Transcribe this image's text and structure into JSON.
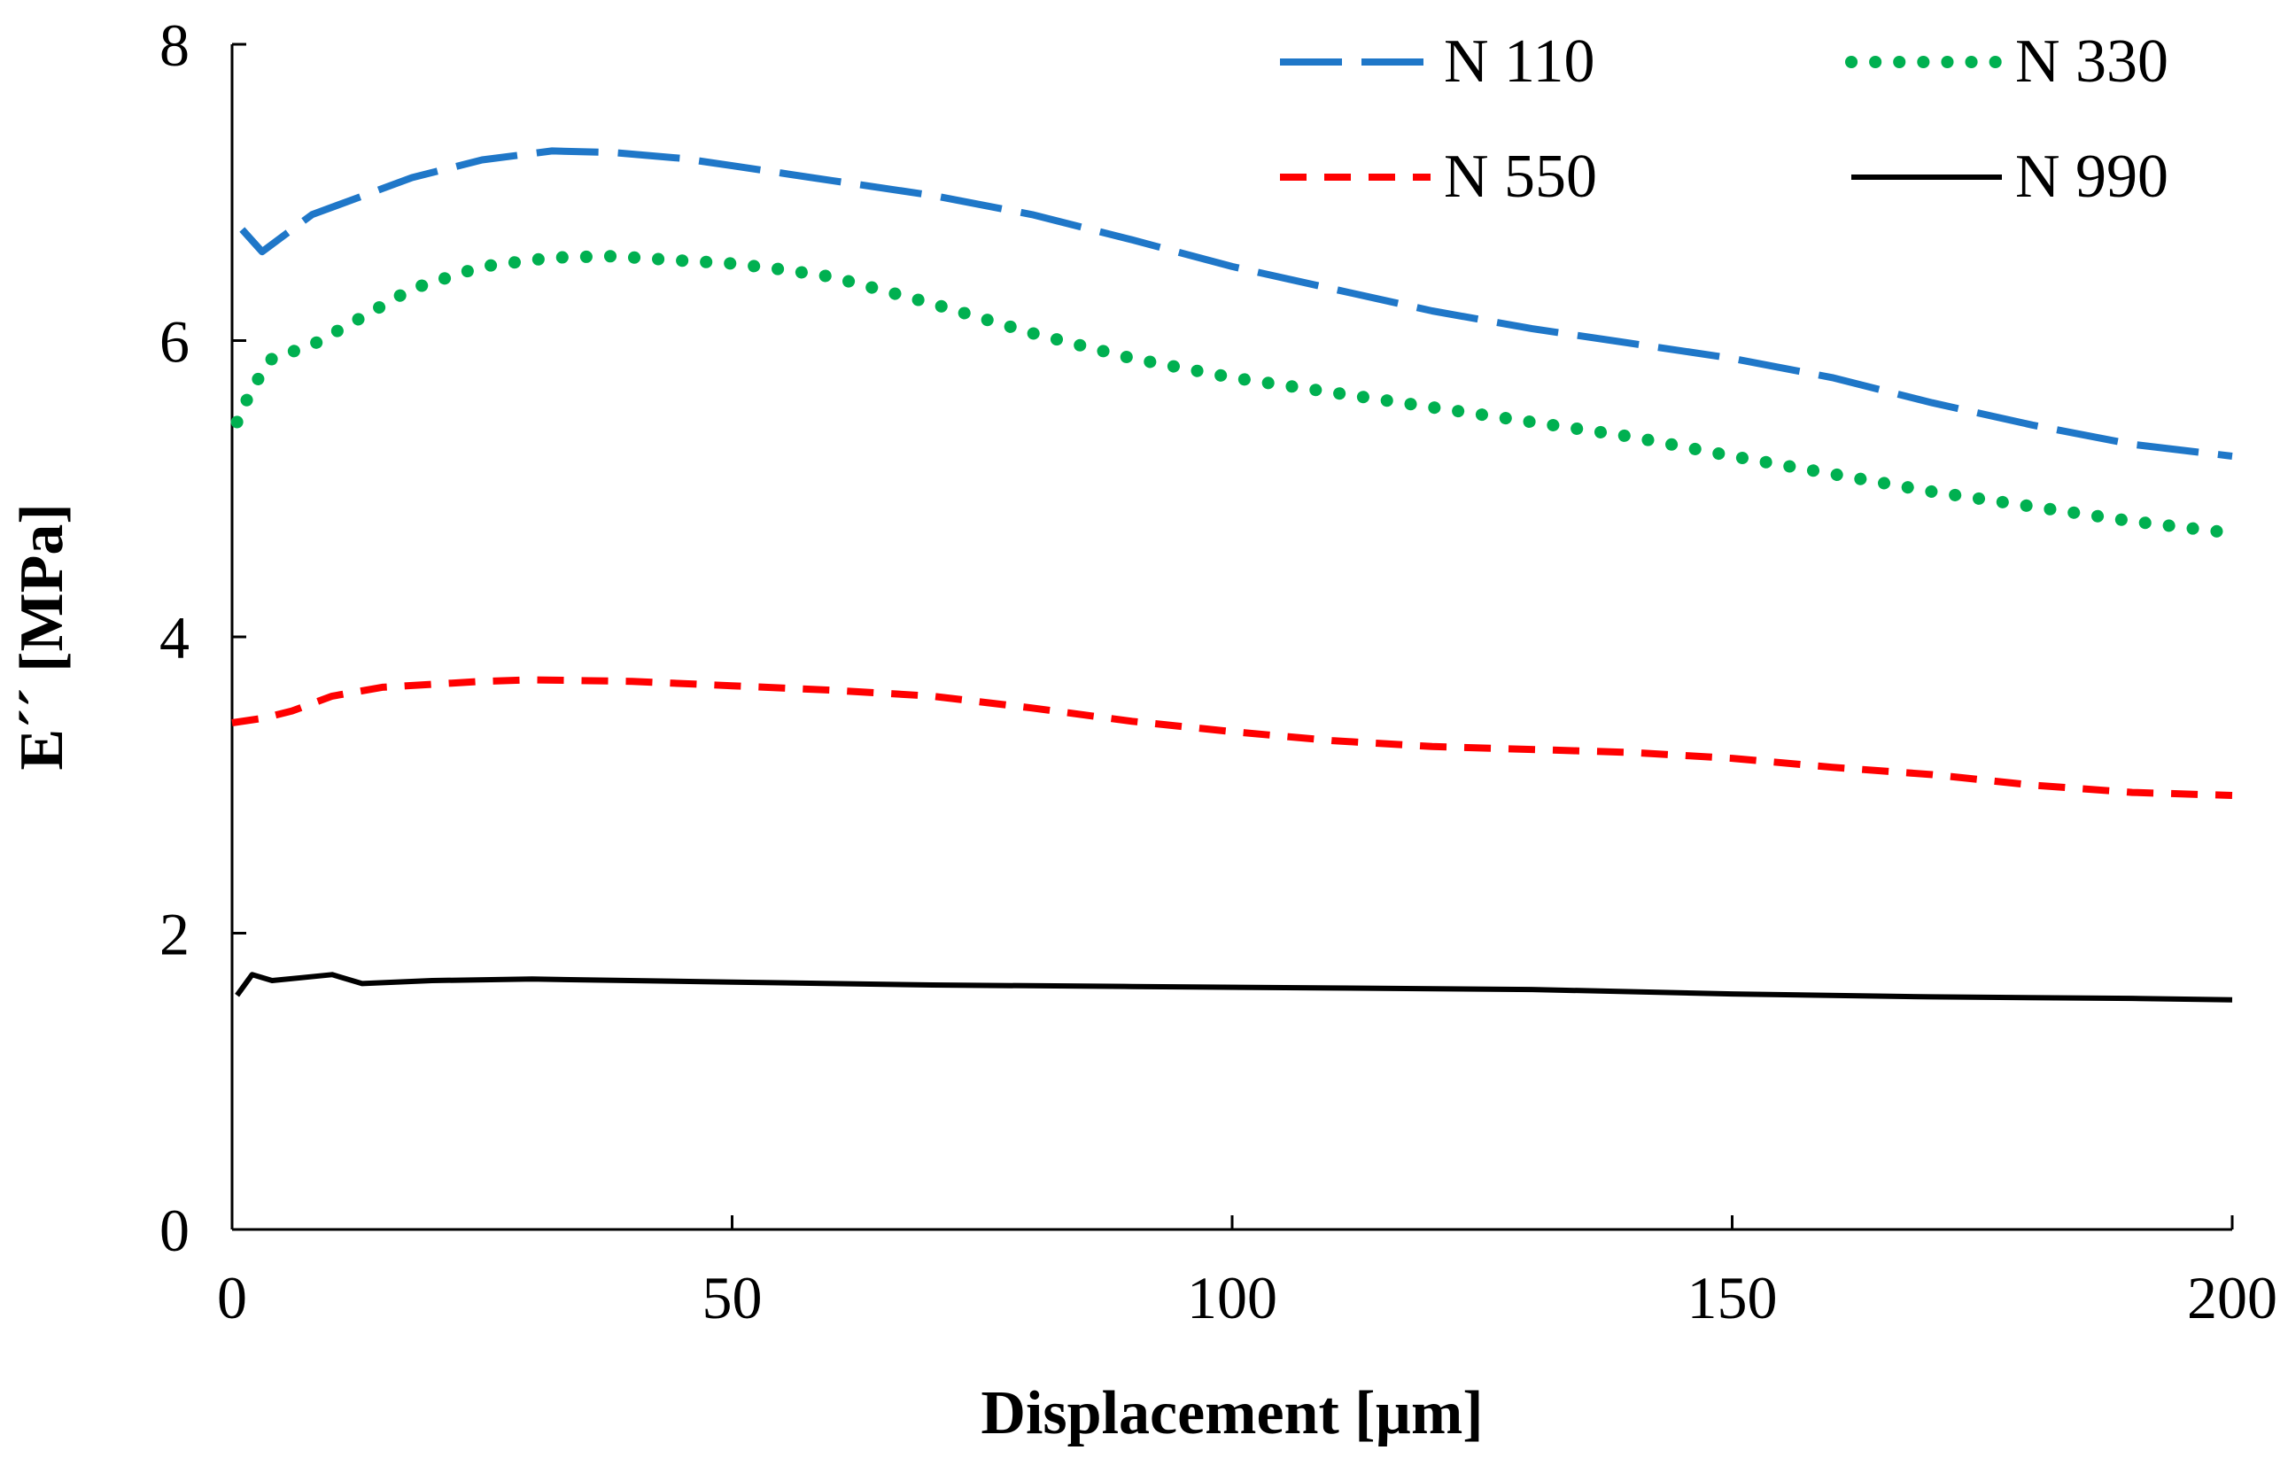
{
  "chart_data": {
    "type": "line",
    "title": "",
    "xlabel": "Displacement [µm]",
    "ylabel": "E´´ [MPa]",
    "xlim": [
      0,
      200
    ],
    "ylim": [
      0,
      8
    ],
    "xticks": [
      0,
      50,
      100,
      150,
      200
    ],
    "yticks": [
      0,
      2,
      4,
      6,
      8
    ],
    "grid": false,
    "legend_position": "top-right",
    "series": [
      {
        "name": "N 110",
        "style": "long-dash",
        "color": "#1f77c8",
        "x": [
          1,
          3,
          5,
          8,
          12,
          18,
          25,
          32,
          38,
          45,
          50,
          55,
          60,
          70,
          80,
          90,
          100,
          110,
          120,
          130,
          140,
          150,
          160,
          170,
          180,
          190,
          200
        ],
        "y": [
          6.75,
          6.6,
          6.7,
          6.85,
          6.95,
          7.1,
          7.22,
          7.28,
          7.27,
          7.23,
          7.18,
          7.13,
          7.08,
          6.98,
          6.85,
          6.68,
          6.5,
          6.35,
          6.2,
          6.08,
          5.98,
          5.88,
          5.75,
          5.58,
          5.43,
          5.3,
          5.22
        ]
      },
      {
        "name": "N 330",
        "style": "dotted",
        "color": "#00b050",
        "x": [
          0.5,
          2,
          4,
          8,
          12,
          18,
          25,
          32,
          38,
          45,
          50,
          55,
          60,
          70,
          80,
          90,
          100,
          110,
          120,
          130,
          140,
          150,
          160,
          170,
          180,
          190,
          200
        ],
        "y": [
          5.45,
          5.68,
          5.88,
          5.97,
          6.12,
          6.35,
          6.5,
          6.56,
          6.57,
          6.54,
          6.52,
          6.48,
          6.43,
          6.25,
          6.05,
          5.88,
          5.75,
          5.65,
          5.55,
          5.45,
          5.35,
          5.22,
          5.1,
          4.98,
          4.88,
          4.78,
          4.7
        ]
      },
      {
        "name": "N 550",
        "style": "short-dash",
        "color": "#ff0000",
        "x": [
          0,
          3,
          6,
          10,
          15,
          20,
          25,
          30,
          40,
          50,
          60,
          70,
          80,
          90,
          100,
          110,
          120,
          130,
          140,
          150,
          160,
          170,
          180,
          190,
          200
        ],
        "y": [
          3.42,
          3.45,
          3.5,
          3.6,
          3.66,
          3.68,
          3.7,
          3.71,
          3.7,
          3.67,
          3.64,
          3.6,
          3.52,
          3.43,
          3.36,
          3.3,
          3.26,
          3.24,
          3.22,
          3.18,
          3.12,
          3.07,
          3.0,
          2.95,
          2.93
        ]
      },
      {
        "name": "N 990",
        "style": "solid",
        "color": "#000000",
        "x": [
          0.5,
          2,
          4,
          7,
          10,
          13,
          20,
          30,
          50,
          70,
          90,
          110,
          130,
          150,
          170,
          190,
          200
        ],
        "y": [
          1.58,
          1.72,
          1.68,
          1.7,
          1.72,
          1.66,
          1.68,
          1.69,
          1.67,
          1.65,
          1.64,
          1.63,
          1.62,
          1.59,
          1.57,
          1.56,
          1.55
        ]
      }
    ]
  }
}
